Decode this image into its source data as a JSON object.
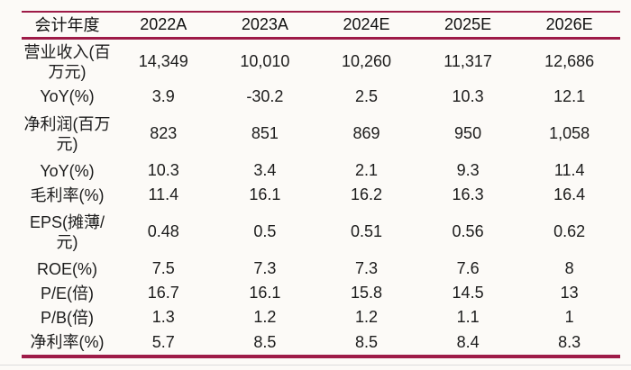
{
  "table": {
    "header": [
      "会计年度",
      "2022A",
      "2023A",
      "2024E",
      "2025E",
      "2026E"
    ],
    "rows": [
      {
        "label": "营业收入(百万元)",
        "values": [
          "14,349",
          "10,010",
          "10,260",
          "11,317",
          "12,686"
        ]
      },
      {
        "label": "YoY(%)",
        "values": [
          "3.9",
          "-30.2",
          "2.5",
          "10.3",
          "12.1"
        ]
      },
      {
        "label": "净利润(百万元)",
        "values": [
          "823",
          "851",
          "869",
          "950",
          "1,058"
        ]
      },
      {
        "label": "YoY(%)",
        "values": [
          "10.3",
          "3.4",
          "2.1",
          "9.3",
          "11.4"
        ]
      },
      {
        "label": "毛利率(%)",
        "values": [
          "11.4",
          "16.1",
          "16.2",
          "16.3",
          "16.4"
        ]
      },
      {
        "label": "EPS(摊薄/元)",
        "values": [
          "0.48",
          "0.5",
          "0.51",
          "0.56",
          "0.62"
        ]
      },
      {
        "label": "ROE(%)",
        "values": [
          "7.5",
          "7.3",
          "7.3",
          "7.6",
          "8"
        ]
      },
      {
        "label": "P/E(倍)",
        "values": [
          "16.7",
          "16.1",
          "15.8",
          "14.5",
          "13"
        ]
      },
      {
        "label": "P/B(倍)",
        "values": [
          "1.3",
          "1.2",
          "1.2",
          "1.1",
          "1"
        ]
      },
      {
        "label": "净利率(%)",
        "values": [
          "5.7",
          "8.5",
          "8.5",
          "8.4",
          "8.3"
        ]
      }
    ]
  },
  "colors": {
    "accent": "#9e1b48",
    "text": "#1c1c1c",
    "background": "#fcfaf7",
    "hairline": "#dcdcdc"
  }
}
